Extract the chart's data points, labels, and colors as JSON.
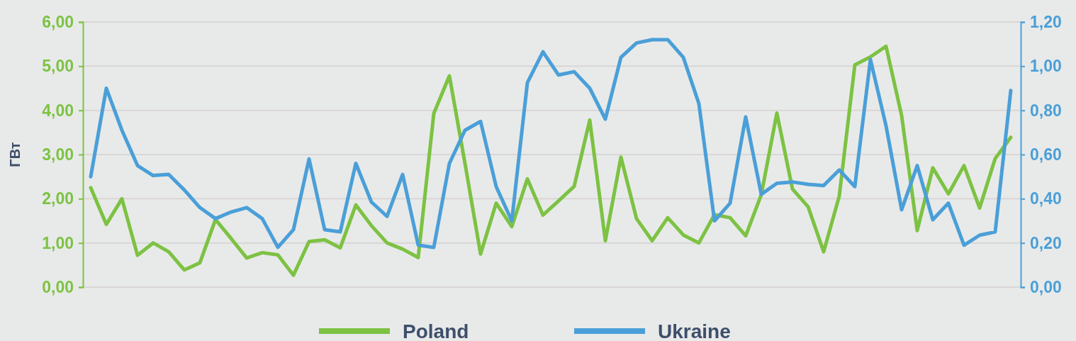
{
  "chart_data": {
    "type": "line",
    "ylabel": "ГВт",
    "categories": [
      null,
      null,
      null,
      null,
      null,
      null,
      null,
      null,
      null,
      null,
      null,
      null,
      null,
      null,
      null,
      null,
      null,
      null,
      null,
      null,
      null,
      null,
      null,
      null,
      null,
      null,
      null,
      null,
      null,
      null,
      null,
      null,
      null,
      null,
      null,
      null,
      null,
      null,
      null,
      null,
      null,
      null,
      null,
      null,
      null,
      null,
      null,
      null,
      null,
      null,
      null,
      null,
      null,
      null,
      null,
      null,
      null,
      null,
      null,
      null
    ],
    "series": [
      {
        "name": "Poland",
        "color": "#7dc243",
        "values": [
          2.25,
          1.42,
          2.0,
          0.72,
          1.0,
          0.8,
          0.39,
          0.55,
          1.53,
          1.1,
          0.66,
          0.78,
          0.73,
          0.27,
          1.03,
          1.07,
          0.89,
          1.86,
          1.39,
          1.0,
          0.86,
          0.67,
          3.93,
          4.78,
          2.8,
          0.75,
          1.9,
          1.37,
          2.45,
          1.63,
          1.95,
          2.28,
          3.78,
          1.05,
          2.94,
          1.55,
          1.05,
          1.57,
          1.18,
          1.0,
          1.64,
          1.57,
          1.16,
          2.09,
          3.94,
          2.22,
          1.82,
          0.8,
          2.06,
          5.03,
          5.21,
          5.45,
          3.88,
          1.28,
          2.7,
          2.11,
          2.75,
          1.79,
          2.91,
          3.39
        ]
      },
      {
        "name": "Ukraine",
        "color": "#4a9fd8",
        "axis": "y2",
        "values": [
          0.5,
          0.9,
          0.71,
          0.55,
          0.505,
          0.51,
          0.44,
          0.36,
          0.31,
          0.34,
          0.36,
          0.31,
          0.18,
          0.26,
          0.58,
          0.26,
          0.25,
          0.56,
          0.385,
          0.32,
          0.51,
          0.19,
          0.18,
          0.56,
          0.71,
          0.75,
          0.455,
          0.3,
          0.925,
          1.065,
          0.96,
          0.975,
          0.9,
          0.76,
          1.04,
          1.105,
          1.12,
          1.12,
          1.04,
          0.83,
          0.3,
          0.38,
          0.77,
          0.42,
          0.47,
          0.476,
          0.465,
          0.46,
          0.53,
          0.455,
          1.03,
          0.73,
          0.35,
          0.55,
          0.305,
          0.38,
          0.19,
          0.235,
          0.25,
          0.89
        ]
      }
    ],
    "ylim": [
      0,
      6
    ],
    "yticks": [
      {
        "value": 0,
        "label": "0,00"
      },
      {
        "value": 1,
        "label": "1,00"
      },
      {
        "value": 2,
        "label": "2,00"
      },
      {
        "value": 3,
        "label": "3,00"
      },
      {
        "value": 4,
        "label": "4,00"
      },
      {
        "value": 5,
        "label": "5,00"
      },
      {
        "value": 6,
        "label": "6,00"
      }
    ],
    "y2lim": [
      0,
      1.2
    ],
    "y2ticks": [
      {
        "value": 0,
        "label": "0,00"
      },
      {
        "value": 0.2,
        "label": "0,20"
      },
      {
        "value": 0.4,
        "label": "0,40"
      },
      {
        "value": 0.6,
        "label": "0,60"
      },
      {
        "value": 0.8,
        "label": "0,80"
      },
      {
        "value": 1.0,
        "label": "1,00"
      },
      {
        "value": 1.2,
        "label": "1,20"
      }
    ],
    "grid": "y",
    "legend": "bottom",
    "line_style": "solid",
    "marker": "none"
  }
}
